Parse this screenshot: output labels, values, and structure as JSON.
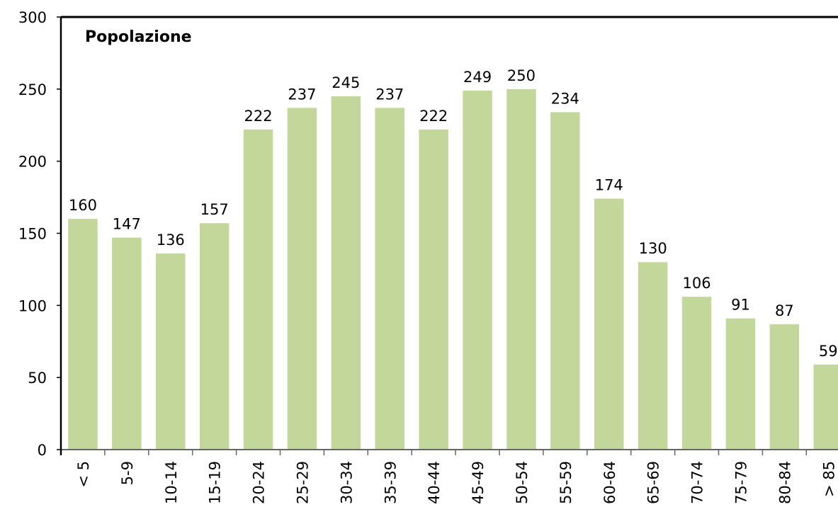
{
  "chart_data": {
    "type": "bar",
    "title": "Popolazione",
    "categories": [
      "< 5",
      "5-9",
      "10-14",
      "15-19",
      "20-24",
      "25-29",
      "30-34",
      "35-39",
      "40-44",
      "45-49",
      "50-54",
      "55-59",
      "60-64",
      "65-69",
      "70-74",
      "75-79",
      "80-84",
      "> 85"
    ],
    "values": [
      160,
      147,
      136,
      157,
      222,
      237,
      245,
      237,
      222,
      249,
      250,
      234,
      174,
      130,
      106,
      91,
      87,
      59
    ],
    "color": "#c4d79b",
    "ylim": [
      0,
      300
    ],
    "yticks": [
      0,
      50,
      100,
      150,
      200,
      250,
      300
    ],
    "grid": false
  }
}
